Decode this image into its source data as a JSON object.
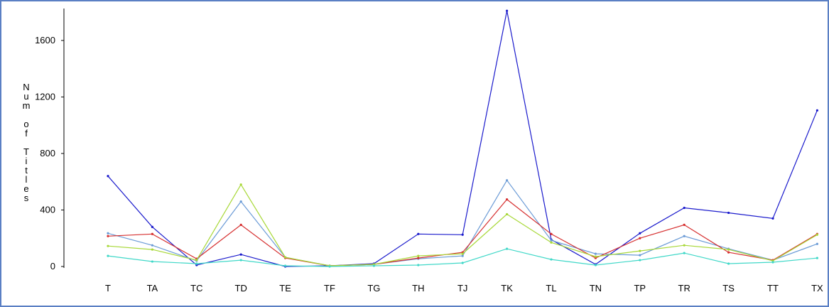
{
  "chart_data": {
    "type": "line",
    "title": "",
    "xlabel": "",
    "ylabel": "Num of Titles",
    "ylim": [
      0,
      1800
    ],
    "yticks": [
      0,
      400,
      800,
      1200,
      1600
    ],
    "grid": false,
    "categories": [
      "T",
      "TA",
      "TC",
      "TD",
      "TE",
      "TF",
      "TG",
      "TH",
      "TJ",
      "TK",
      "TL",
      "TN",
      "TP",
      "TR",
      "TS",
      "TT",
      "TX"
    ],
    "series": [
      {
        "color": "#1a1acc",
        "values": [
          640,
          280,
          10,
          85,
          0,
          5,
          20,
          230,
          225,
          1810,
          190,
          15,
          235,
          415,
          380,
          340,
          1105
        ]
      },
      {
        "color": "#6b9bd6",
        "values": [
          235,
          150,
          40,
          460,
          65,
          5,
          15,
          55,
          75,
          610,
          185,
          90,
          80,
          215,
          125,
          45,
          160
        ]
      },
      {
        "color": "#d63030",
        "values": [
          215,
          230,
          55,
          295,
          60,
          5,
          15,
          60,
          100,
          475,
          230,
          60,
          200,
          295,
          100,
          45,
          230
        ]
      },
      {
        "color": "#a8d838",
        "values": [
          145,
          120,
          45,
          580,
          65,
          5,
          15,
          75,
          90,
          370,
          170,
          70,
          110,
          150,
          120,
          40,
          225
        ]
      },
      {
        "color": "#40d8c8",
        "values": [
          75,
          35,
          20,
          45,
          5,
          0,
          5,
          10,
          25,
          125,
          50,
          10,
          45,
          95,
          20,
          30,
          60
        ]
      }
    ]
  }
}
